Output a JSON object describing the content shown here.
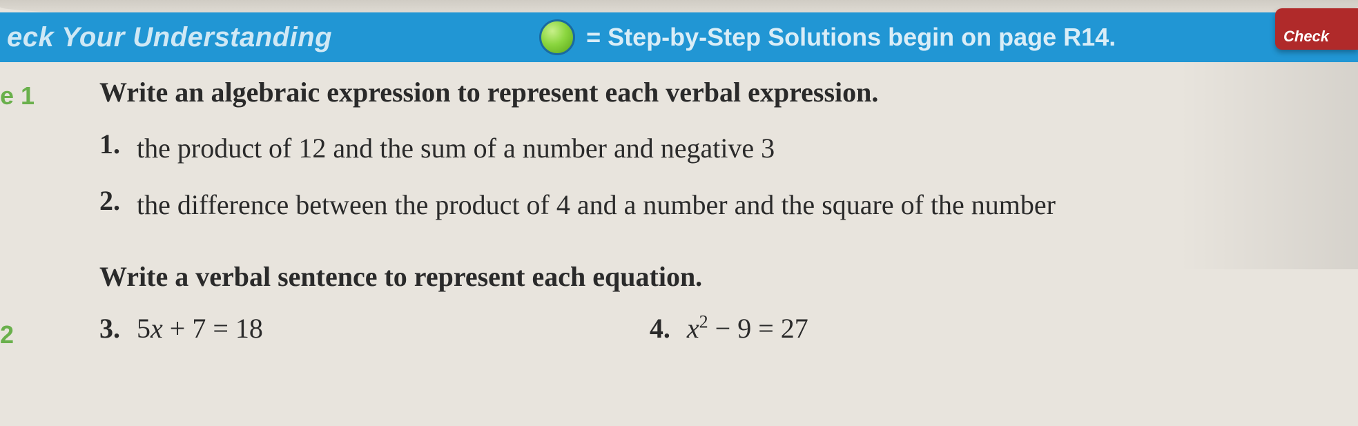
{
  "header": {
    "left_title": "eck Your Understanding",
    "solutions_prefix": "= ",
    "solutions_text": "Step-by-Step Solutions begin on page R14.",
    "tab_text": "Check",
    "bar_color": "#2196d4",
    "dot_gradient_inner": "#c8f08a",
    "dot_gradient_mid": "#8bd63f",
    "dot_gradient_outer": "#5aa618",
    "tab_color": "#b02a2a"
  },
  "example1": {
    "label": "e 1",
    "instruction": "Write an algebraic expression to represent each verbal expression.",
    "problems": [
      {
        "num": "1.",
        "text": "the product of 12 and the sum of a number and negative 3"
      },
      {
        "num": "2.",
        "text": "the difference between the product of 4 and a number and the square of the number"
      }
    ]
  },
  "example2": {
    "label": "2",
    "instruction": "Write a verbal sentence to represent each equation.",
    "problems": [
      {
        "num": "3.",
        "lhs_coef": "5",
        "lhs_var": "x",
        "lhs_op": " + 7",
        "eq": " = ",
        "rhs": "18"
      },
      {
        "num": "4.",
        "lhs_var": "x",
        "lhs_exp": "2",
        "lhs_op": " − 9",
        "eq": " = ",
        "rhs": "27"
      }
    ]
  },
  "style": {
    "body_bg": "#e8e4dd",
    "text_color": "#2a2a2a",
    "label_color": "#6ab04c",
    "instruction_fontsize": 40,
    "problem_fontsize": 40
  }
}
